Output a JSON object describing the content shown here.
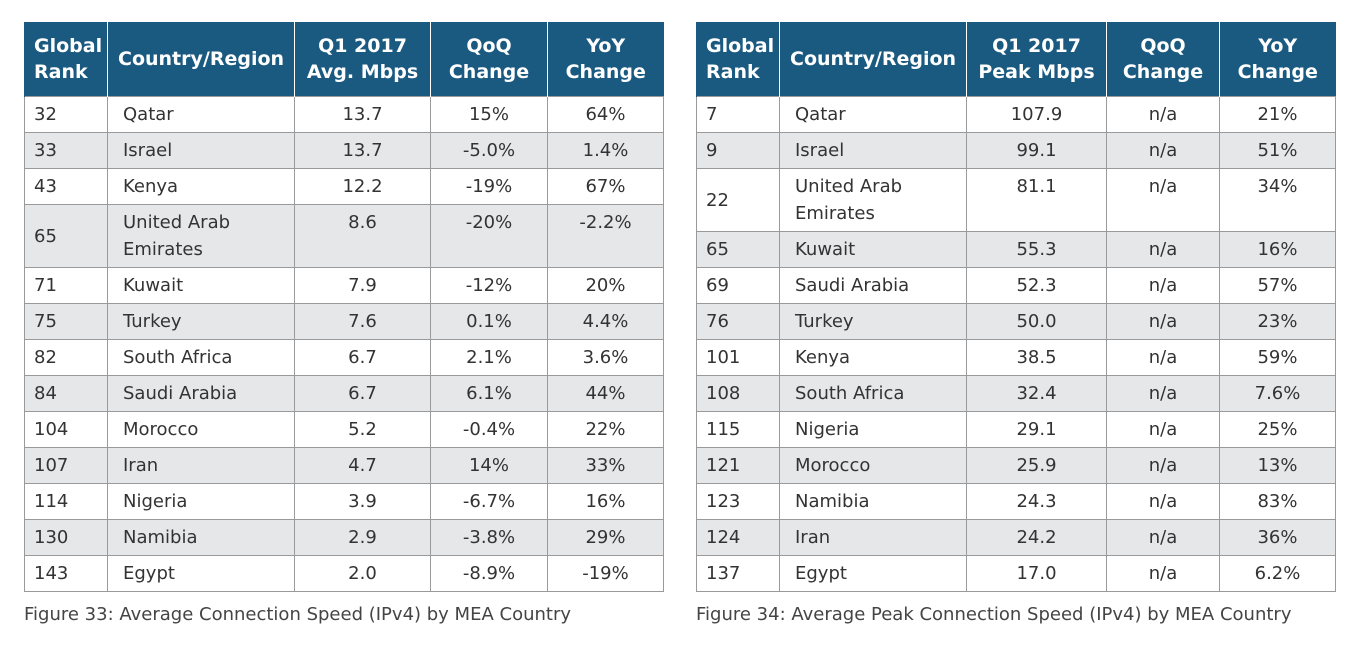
{
  "tables": [
    {
      "headers": [
        "Global\nRank",
        "Country/Region",
        "Q1 2017\nAvg. Mbps",
        "QoQ\nChange",
        "YoY\nChange"
      ],
      "rows": [
        [
          "32",
          "Qatar",
          "13.7",
          "15%",
          "64%"
        ],
        [
          "33",
          "Israel",
          "13.7",
          "-5.0%",
          "1.4%"
        ],
        [
          "43",
          "Kenya",
          "12.2",
          "-19%",
          "67%"
        ],
        [
          "65",
          "United Arab\nEmirates",
          "8.6",
          "-20%",
          "-2.2%"
        ],
        [
          "71",
          "Kuwait",
          "7.9",
          "-12%",
          "20%"
        ],
        [
          "75",
          "Turkey",
          "7.6",
          "0.1%",
          "4.4%"
        ],
        [
          "82",
          "South Africa",
          "6.7",
          "2.1%",
          "3.6%"
        ],
        [
          "84",
          "Saudi Arabia",
          "6.7",
          "6.1%",
          "44%"
        ],
        [
          "104",
          "Morocco",
          "5.2",
          "-0.4%",
          "22%"
        ],
        [
          "107",
          "Iran",
          "4.7",
          "14%",
          "33%"
        ],
        [
          "114",
          "Nigeria",
          "3.9",
          "-6.7%",
          "16%"
        ],
        [
          "130",
          "Namibia",
          "2.9",
          "-3.8%",
          "29%"
        ],
        [
          "143",
          "Egypt",
          "2.0",
          "-8.9%",
          "-19%"
        ]
      ],
      "caption": "Figure 33: Average Connection Speed (IPv4) by MEA Country"
    },
    {
      "headers": [
        "Global\nRank",
        "Country/Region",
        "Q1 2017\nPeak Mbps",
        "QoQ\nChange",
        "YoY\nChange"
      ],
      "rows": [
        [
          "7",
          "Qatar",
          "107.9",
          "n/a",
          "21%"
        ],
        [
          "9",
          "Israel",
          "99.1",
          "n/a",
          "51%"
        ],
        [
          "22",
          "United Arab\nEmirates",
          "81.1",
          "n/a",
          "34%"
        ],
        [
          "65",
          "Kuwait",
          "55.3",
          "n/a",
          "16%"
        ],
        [
          "69",
          "Saudi Arabia",
          "52.3",
          "n/a",
          "57%"
        ],
        [
          "76",
          "Turkey",
          "50.0",
          "n/a",
          "23%"
        ],
        [
          "101",
          "Kenya",
          "38.5",
          "n/a",
          "59%"
        ],
        [
          "108",
          "South Africa",
          "32.4",
          "n/a",
          "7.6%"
        ],
        [
          "115",
          "Nigeria",
          "29.1",
          "n/a",
          "25%"
        ],
        [
          "121",
          "Morocco",
          "25.9",
          "n/a",
          "13%"
        ],
        [
          "123",
          "Namibia",
          "24.3",
          "n/a",
          "83%"
        ],
        [
          "124",
          "Iran",
          "24.2",
          "n/a",
          "36%"
        ],
        [
          "137",
          "Egypt",
          "17.0",
          "n/a",
          "6.2%"
        ]
      ],
      "caption": "Figure 34: Average Peak Connection Speed (IPv4) by MEA Country"
    }
  ],
  "colors": {
    "header_bg": "#1b5a80",
    "header_text": "#ffffff",
    "alt_row_bg": "#e6e7e8",
    "border": "#9a9a9a"
  }
}
